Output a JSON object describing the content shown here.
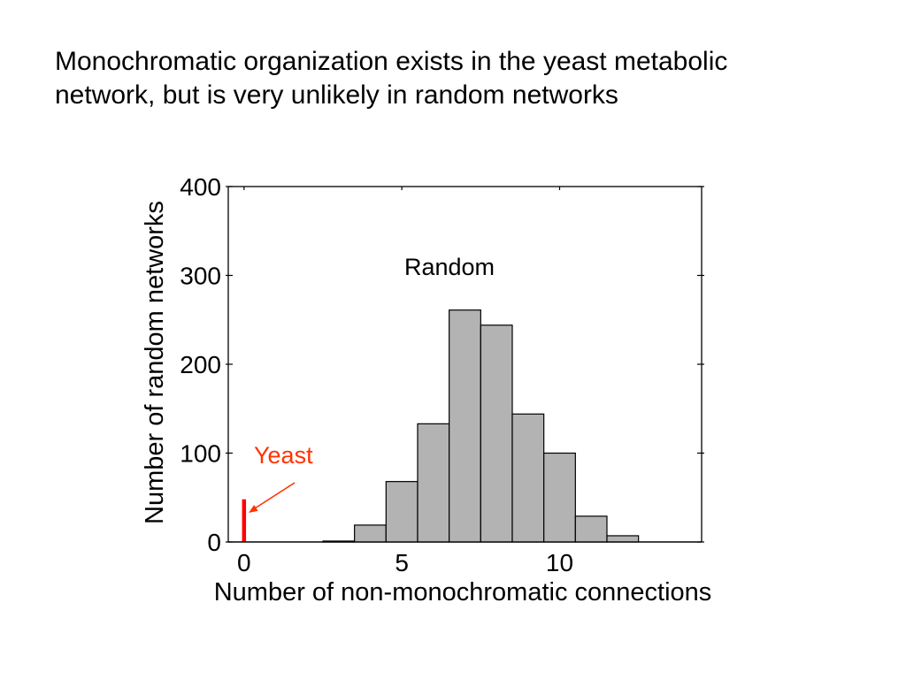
{
  "slide": {
    "title": "Monochromatic organization exists in the yeast metabolic network, but is very unlikely in random networks"
  },
  "chart_data": {
    "type": "bar",
    "xlabel": "Number of non-monochromatic connections",
    "ylabel": "Number of random networks",
    "xlim": [
      -0.5,
      14.5
    ],
    "ylim": [
      0,
      400
    ],
    "xticks": [
      0,
      5,
      10
    ],
    "yticks": [
      0,
      100,
      200,
      300,
      400
    ],
    "grid": false,
    "series": [
      {
        "name": "Random",
        "x": [
          3,
          4,
          5,
          6,
          7,
          8,
          9,
          10,
          11,
          12
        ],
        "values": [
          1,
          19,
          68,
          133,
          261,
          244,
          144,
          100,
          29,
          7
        ],
        "color": "#b3b3b3"
      },
      {
        "name": "Yeast",
        "x": [
          0
        ],
        "values": [
          48
        ],
        "color": "#ff0000"
      }
    ],
    "annotation_color": "#ff3300"
  }
}
